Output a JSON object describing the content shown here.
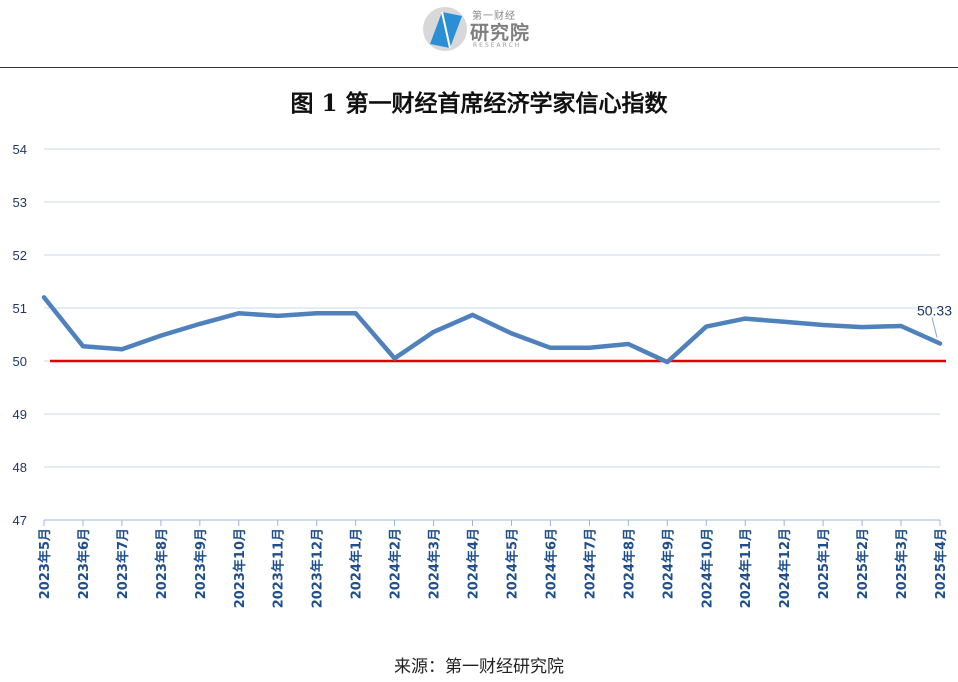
{
  "header": {
    "logo_text_top": "第一财经",
    "logo_text_main": "研究院",
    "logo_text_sub": "RESEARCH"
  },
  "chart_data": {
    "type": "line",
    "title": "图 1 第一财经首席经济学家信心指数",
    "categories": [
      "2023年5月",
      "2023年6月",
      "2023年7月",
      "2023年8月",
      "2023年9月",
      "2023年10月",
      "2023年11月",
      "2023年12月",
      "2024年1月",
      "2024年2月",
      "2024年3月",
      "2024年4月",
      "2024年5月",
      "2024年6月",
      "2024年7月",
      "2024年8月",
      "2024年9月",
      "2024年10月",
      "2024年11月",
      "2024年12月",
      "2025年1月",
      "2025年2月",
      "2025年3月",
      "2025年4月"
    ],
    "series": [
      {
        "values": [
          51.2,
          50.28,
          50.22,
          50.48,
          50.7,
          50.9,
          50.85,
          50.9,
          50.9,
          50.05,
          50.55,
          50.87,
          50.52,
          50.25,
          50.25,
          50.32,
          49.98,
          50.65,
          50.8,
          50.74,
          50.68,
          50.64,
          50.66,
          50.33
        ],
        "color": "#4f81bd"
      }
    ],
    "reference_line": {
      "value": 50,
      "color": "#e00000"
    },
    "annotation": {
      "text": "50.33",
      "category": "2025年4月",
      "value": 50.33
    },
    "ylim": [
      47,
      54
    ],
    "yticks": [
      "47",
      "48",
      "49",
      "50",
      "51",
      "52",
      "53",
      "54"
    ],
    "grid": true,
    "legend": "none",
    "source": "来源：第一财经研究院"
  }
}
